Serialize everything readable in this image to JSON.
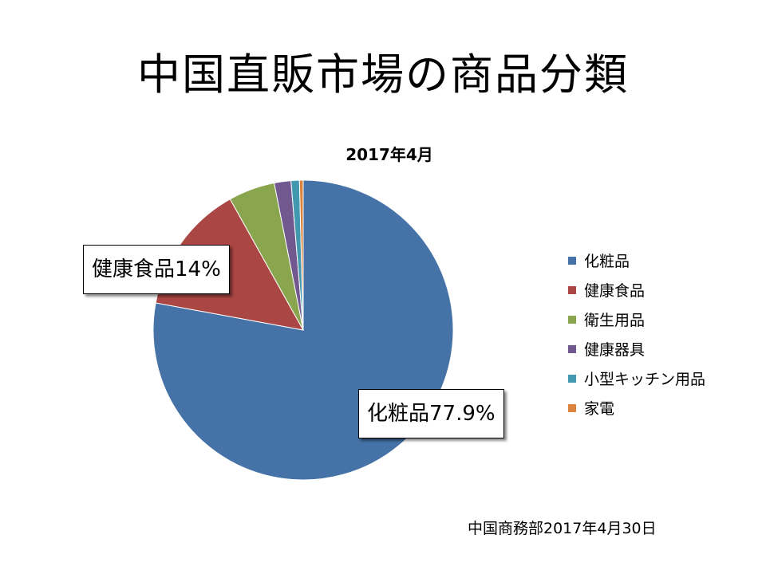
{
  "slide": {
    "title": "中国直販市場の商品分類",
    "source": "中国商務部2017年4月30日"
  },
  "chart_data": {
    "type": "pie",
    "title": "2017年4月",
    "start_angle_deg": 0,
    "direction": "clockwise",
    "legend_position": "right",
    "slices": [
      {
        "name": "化粧品",
        "value": 77.9,
        "color": "#4572A7"
      },
      {
        "name": "健康食品",
        "value": 14.0,
        "color": "#AA4643"
      },
      {
        "name": "衛生用品",
        "value": 5.0,
        "color": "#89A54E"
      },
      {
        "name": "健康器具",
        "value": 1.8,
        "color": "#71588F"
      },
      {
        "name": "小型キッチン用品",
        "value": 0.9,
        "color": "#4198AF"
      },
      {
        "name": "家電",
        "value": 0.4,
        "color": "#DB843D"
      }
    ],
    "labels": [
      {
        "text": "化粧品77.9%"
      },
      {
        "text": "健康食品14%"
      }
    ]
  }
}
